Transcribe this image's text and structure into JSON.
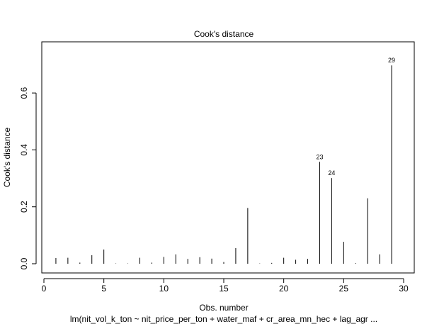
{
  "chart_data": {
    "type": "bar",
    "title": "Cook's distance",
    "xlabel": "Obs. number",
    "ylabel": "Cook's distance",
    "subtitle": "lm(nit_vol_k_ton ~ nit_price_per_ton + water_maf + cr_area_mn_hec + lag_agr ...",
    "xlim": [
      0,
      30
    ],
    "ylim": [
      0,
      0.7
    ],
    "x_ticks": [
      0,
      5,
      10,
      15,
      20,
      25,
      30
    ],
    "y_ticks": [
      0.0,
      0.2,
      0.4,
      0.6
    ],
    "x_tick_labels": [
      "0",
      "5",
      "10",
      "15",
      "20",
      "25",
      "30"
    ],
    "y_tick_labels": [
      "0.0",
      "0.2",
      "0.4",
      "0.6"
    ],
    "x": [
      1,
      2,
      3,
      4,
      5,
      6,
      7,
      8,
      9,
      10,
      11,
      12,
      13,
      14,
      15,
      16,
      17,
      18,
      19,
      20,
      21,
      22,
      23,
      24,
      25,
      26,
      27,
      28,
      29
    ],
    "values": [
      0.02,
      0.021,
      0.004,
      0.03,
      0.05,
      0.001,
      0.001,
      0.021,
      0.004,
      0.024,
      0.033,
      0.017,
      0.023,
      0.018,
      0.006,
      0.055,
      0.196,
      0.001,
      0.003,
      0.021,
      0.014,
      0.017,
      0.358,
      0.301,
      0.077,
      0.002,
      0.23,
      0.033,
      0.697
    ],
    "annotations": [
      {
        "x": 23,
        "label": "23"
      },
      {
        "x": 24,
        "label": "24"
      },
      {
        "x": 29,
        "label": "29"
      }
    ],
    "grid": false,
    "legend": "none",
    "color": "#000000"
  }
}
